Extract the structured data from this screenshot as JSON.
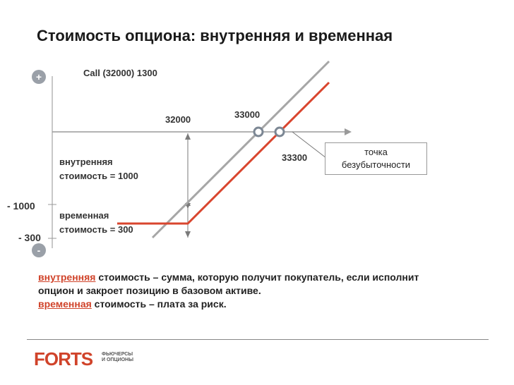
{
  "title": "Стоимость опциона: внутренняя и временная",
  "chart_data": {
    "type": "line",
    "option_label": "Call (32000) 1300",
    "plus_sign": "+",
    "minus_sign": "-",
    "strike_label": "32000",
    "intrinsic_point_label": "33000",
    "breakeven_label": "33300",
    "breakeven_callout": [
      "точка",
      "безубыточности"
    ],
    "y_tick_labels": [
      "- 1000",
      "- 300"
    ],
    "intrinsic_text": [
      "внутренняя",
      "стоимость = 1000"
    ],
    "time_text": [
      "временная",
      "стоимость = 300"
    ],
    "series": [
      {
        "color": "#a6a6a6",
        "x": [
          31500,
          34000
        ],
        "y": [
          -1500,
          1000
        ]
      },
      {
        "color": "#d9452e",
        "x": [
          31000,
          32000,
          34000
        ],
        "y": [
          -1300,
          -1300,
          700
        ]
      }
    ]
  },
  "description": {
    "line1_highlight": "внутренняя",
    "line1_rest": " стоимость – сумма, которую получит покупатель, если исполнит",
    "line2": "опцион и закроет позицию в базовом активе.",
    "line3_highlight": "временная",
    "line3_rest": " стоимость – плата за риск."
  },
  "logo": {
    "name": "FORTS",
    "sub1": "ФЬЮЧЕРСЫ",
    "sub2": "И ОПЦИОНЫ"
  }
}
